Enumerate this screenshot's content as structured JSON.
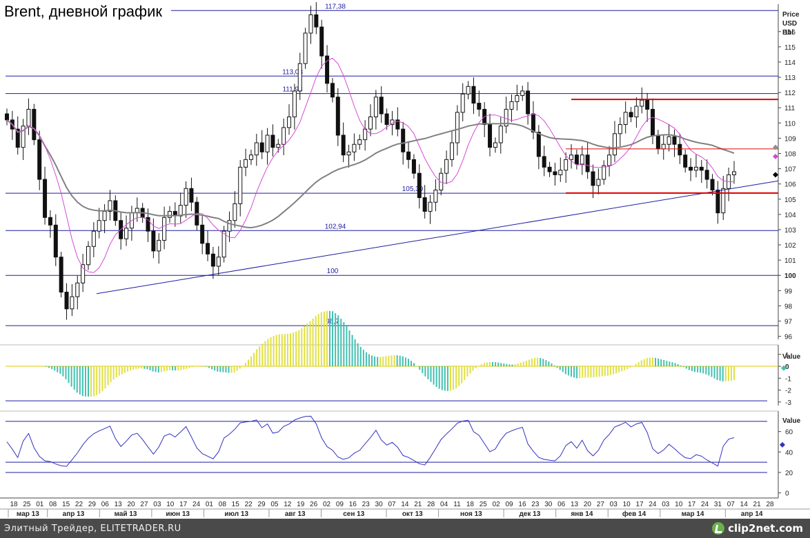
{
  "title": "Brent, дневной график",
  "footer": {
    "text": "Элитный Трейдер, ELITETRADER.RU",
    "brand": "clip2net.com"
  },
  "colors": {
    "candle": "#111111",
    "level_line": "#1c1ca0",
    "red_line": "#e00000",
    "ma_short": "#d44ad4",
    "ma_long": "#808080",
    "oscillator_pos": "#e0e040",
    "oscillator_neg": "#40c0b0",
    "rsi_line": "#3030c0"
  },
  "chart_data": [
    {
      "type": "candlestick",
      "axis_header": [
        "Price",
        "USD",
        "Bbl"
      ],
      "ylim": [
        95.8,
        117.8
      ],
      "yticks": [
        96,
        97,
        98,
        99,
        100,
        101,
        102,
        103,
        104,
        105,
        106,
        107,
        108,
        109,
        110,
        111,
        112,
        113,
        114,
        115,
        116
      ],
      "bold_ticks": [
        100
      ],
      "horizontal_levels": [
        {
          "value": 117.38,
          "label": "117,38"
        },
        {
          "value": 113.08,
          "label": "113,08"
        },
        {
          "value": 111.93,
          "label": "111,93"
        },
        {
          "value": 105.39,
          "label": "105,39"
        },
        {
          "value": 102.94,
          "label": "102,94"
        },
        {
          "value": 100,
          "label": "100"
        },
        {
          "value": 96.7,
          "label": "96,7"
        }
      ],
      "x_day_labels": [
        "18",
        "25",
        "01",
        "08",
        "15",
        "22",
        "29",
        "06",
        "13",
        "20",
        "27",
        "03",
        "10",
        "17",
        "24",
        "01",
        "08",
        "15",
        "22",
        "29",
        "05",
        "12",
        "19",
        "26",
        "02",
        "09",
        "16",
        "23",
        "30",
        "07",
        "14",
        "21",
        "28",
        "04",
        "11",
        "18",
        "25",
        "02",
        "09",
        "16",
        "23",
        "30",
        "06",
        "13",
        "20",
        "27",
        "03",
        "10",
        "17",
        "24",
        "03",
        "10",
        "17",
        "24",
        "31",
        "07",
        "14",
        "21",
        "28"
      ],
      "x_month_labels": [
        "мар 13",
        "апр 13",
        "май 13",
        "июн 13",
        "июл 13",
        "авг 13",
        "сен 13",
        "окт 13",
        "ноя 13",
        "дек 13",
        "янв 14",
        "фев 14",
        "мар 14",
        "апр 14"
      ],
      "side_markers": [
        108.4,
        107.8,
        106.6
      ],
      "closes": [
        110.2,
        109.6,
        108.4,
        109.8,
        110.9,
        108.9,
        106.3,
        103.8,
        103.3,
        101.2,
        98.9,
        97.8,
        98.6,
        99.5,
        100.7,
        101.9,
        102.9,
        103.6,
        104.2,
        104.9,
        103.6,
        102.4,
        103.1,
        104.1,
        104.4,
        103.8,
        102.9,
        101.6,
        102.3,
        103.8,
        104.2,
        103.9,
        104.6,
        105.7,
        104.8,
        103.3,
        102.1,
        101.4,
        100.6,
        101.2,
        102.9,
        103.6,
        104.7,
        107.1,
        107.6,
        107.9,
        108.7,
        108.1,
        109.2,
        108.4,
        108.6,
        109.7,
        110.4,
        112.1,
        113.9,
        115.9,
        117.1,
        116.3,
        114.4,
        112.6,
        111.7,
        109.2,
        107.9,
        108.1,
        108.6,
        108.9,
        109.6,
        110.4,
        111.7,
        110.6,
        109.9,
        110.2,
        109.6,
        108.1,
        107.6,
        106.7,
        105.1,
        104.2,
        104.8,
        105.6,
        106.7,
        107.6,
        108.7,
        110.7,
        111.9,
        112.4,
        111.3,
        110.9,
        109.9,
        108.4,
        108.7,
        109.8,
        110.9,
        111.4,
        111.8,
        112.1,
        110.6,
        109.4,
        107.8,
        107.1,
        106.8,
        106.6,
        106.9,
        107.6,
        107.9,
        107.3,
        107.9,
        106.8,
        105.9,
        106.3,
        107.2,
        107.9,
        109.3,
        109.9,
        110.7,
        110.4,
        111.1,
        111.5,
        110.9,
        109.2,
        108.3,
        108.6,
        109.1,
        108.6,
        107.9,
        107.1,
        106.9,
        107.1,
        106.9,
        106.3,
        105.6,
        104.1,
        105.7,
        106.6,
        106.8
      ]
    },
    {
      "type": "histogram",
      "axis_header": "Value",
      "ylim": [
        -3.3,
        1.8
      ],
      "yticks": [
        1,
        0,
        -1,
        -2,
        -3
      ],
      "tick_labels": [
        "1",
        "0",
        "-1",
        "-2",
        "-3"
      ]
    },
    {
      "type": "line",
      "axis_header": "Value",
      "ylim": [
        -5,
        80
      ],
      "yticks": [
        60,
        40,
        20,
        0
      ],
      "tick_labels": [
        "60",
        "40",
        "20",
        "0"
      ],
      "levels": [
        70,
        30,
        20
      ],
      "side_marker": 47
    }
  ]
}
